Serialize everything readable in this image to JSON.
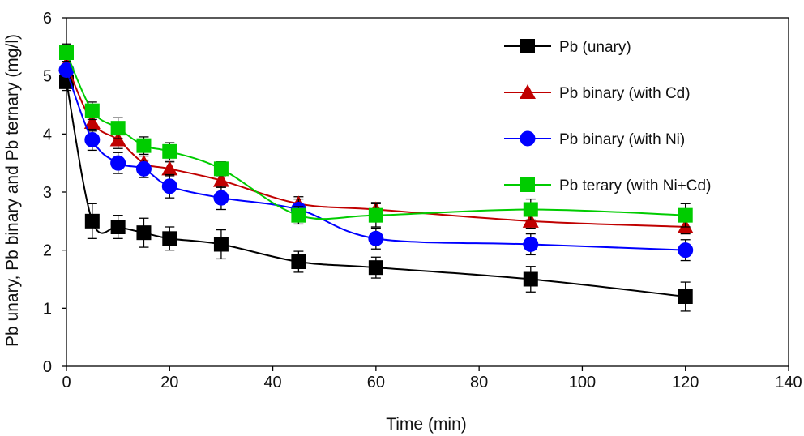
{
  "chart_data": {
    "type": "line",
    "title": "",
    "xlabel": "Time (min)",
    "ylabel": "Pb unary, Pb binary and Pb ternary (mg/l)",
    "xlim": [
      0,
      140
    ],
    "ylim": [
      0,
      6
    ],
    "xticks": [
      0,
      20,
      40,
      60,
      80,
      100,
      120,
      140
    ],
    "yticks": [
      0,
      1,
      2,
      3,
      4,
      5,
      6
    ],
    "grid": false,
    "legend_position": "top-right",
    "x": [
      0,
      5,
      10,
      15,
      20,
      30,
      45,
      60,
      90,
      120
    ],
    "series": [
      {
        "name": "Pb (unary)",
        "color": "#000000",
        "marker": "square",
        "values": [
          4.9,
          2.5,
          2.4,
          2.3,
          2.2,
          2.1,
          1.8,
          1.7,
          1.5,
          1.2
        ],
        "errors": [
          0.15,
          0.3,
          0.2,
          0.25,
          0.2,
          0.25,
          0.18,
          0.18,
          0.22,
          0.25
        ]
      },
      {
        "name": "Pb binary (with Cd)",
        "color": "#c00000",
        "marker": "triangle",
        "values": [
          5.2,
          4.2,
          3.9,
          3.5,
          3.4,
          3.2,
          2.8,
          2.7,
          2.5,
          2.4
        ],
        "errors": [
          0.15,
          0.15,
          0.15,
          0.12,
          0.12,
          0.12,
          0.12,
          0.12,
          0.12,
          0.12
        ]
      },
      {
        "name": "Pb binary (with Ni)",
        "color": "#0000ff",
        "marker": "circle",
        "values": [
          5.1,
          3.9,
          3.5,
          3.4,
          3.1,
          2.9,
          2.7,
          2.2,
          2.1,
          2.0
        ],
        "errors": [
          0.15,
          0.18,
          0.18,
          0.15,
          0.2,
          0.2,
          0.18,
          0.18,
          0.18,
          0.18
        ]
      },
      {
        "name": "Pb terary (with Ni+Cd)",
        "color": "#00cc00",
        "marker": "square",
        "values": [
          5.4,
          4.4,
          4.1,
          3.8,
          3.7,
          3.4,
          2.6,
          2.6,
          2.7,
          2.6
        ],
        "errors": [
          0.15,
          0.15,
          0.18,
          0.15,
          0.15,
          0.12,
          0.15,
          0.2,
          0.18,
          0.2
        ]
      }
    ]
  }
}
